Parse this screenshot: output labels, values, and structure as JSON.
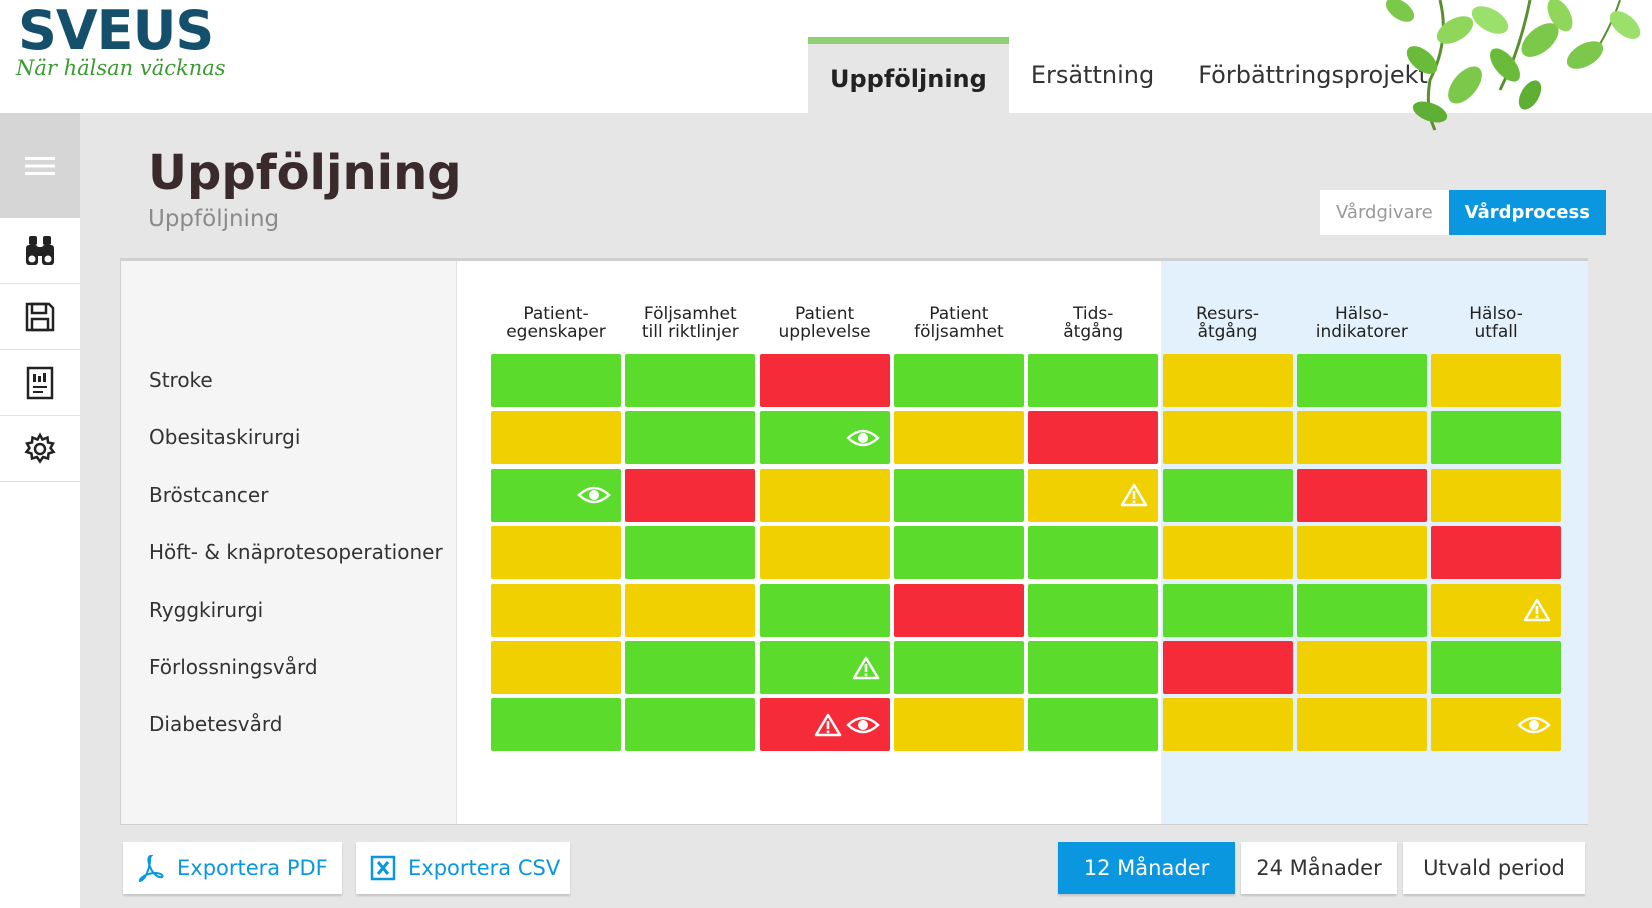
{
  "logo": {
    "title": "SVEUS",
    "tagline": "När hälsan väcknas"
  },
  "nav": {
    "tabs": [
      "Uppföljning",
      "Ersättning",
      "Förbättringsprojekt"
    ],
    "active": 0
  },
  "page": {
    "title": "Uppföljning",
    "subtitle": "Uppföljning"
  },
  "toggle": {
    "options": [
      "Vårdgivare",
      "Vårdprocess"
    ],
    "active": 1
  },
  "grid": {
    "columns": [
      "Patient-\negenskaper",
      "Följsamhet\ntill riktlinjer",
      "Patient\nupplevelse",
      "Patient\nföljsamhet",
      "Tids-\nåtgång",
      "Resurs-\nåtgång",
      "Hälso-\nindikatorer",
      "Hälso-\nutfall"
    ],
    "rows": [
      {
        "label": "Stroke",
        "cells": [
          [
            "green"
          ],
          [
            "green"
          ],
          [
            "red"
          ],
          [
            "green"
          ],
          [
            "green"
          ],
          [
            "yellow"
          ],
          [
            "green"
          ],
          [
            "yellow"
          ]
        ]
      },
      {
        "label": "Obesitaskirurgi",
        "cells": [
          [
            "yellow"
          ],
          [
            "green"
          ],
          [
            "green",
            "eye"
          ],
          [
            "yellow"
          ],
          [
            "red"
          ],
          [
            "yellow"
          ],
          [
            "yellow"
          ],
          [
            "green"
          ]
        ]
      },
      {
        "label": "Bröstcancer",
        "cells": [
          [
            "green",
            "eye"
          ],
          [
            "red"
          ],
          [
            "yellow"
          ],
          [
            "green"
          ],
          [
            "yellow",
            "warning"
          ],
          [
            "green"
          ],
          [
            "red"
          ],
          [
            "yellow"
          ]
        ]
      },
      {
        "label": "Höft- & knäprotesoperationer",
        "cells": [
          [
            "yellow"
          ],
          [
            "green"
          ],
          [
            "yellow"
          ],
          [
            "green"
          ],
          [
            "green"
          ],
          [
            "yellow"
          ],
          [
            "yellow"
          ],
          [
            "red"
          ]
        ]
      },
      {
        "label": "Ryggkirurgi",
        "cells": [
          [
            "yellow"
          ],
          [
            "yellow"
          ],
          [
            "green"
          ],
          [
            "red"
          ],
          [
            "green"
          ],
          [
            "green"
          ],
          [
            "green"
          ],
          [
            "yellow",
            "warning"
          ]
        ]
      },
      {
        "label": "Förlossningsvård",
        "cells": [
          [
            "yellow"
          ],
          [
            "green"
          ],
          [
            "green",
            "warning"
          ],
          [
            "green"
          ],
          [
            "green"
          ],
          [
            "red"
          ],
          [
            "yellow"
          ],
          [
            "green"
          ]
        ]
      },
      {
        "label": "Diabetesvård",
        "cells": [
          [
            "green"
          ],
          [
            "green"
          ],
          [
            "red",
            "warning",
            "eye"
          ],
          [
            "yellow"
          ],
          [
            "green"
          ],
          [
            "yellow"
          ],
          [
            "yellow"
          ],
          [
            "yellow",
            "eye"
          ]
        ]
      }
    ]
  },
  "export": {
    "pdf": "Exportera PDF",
    "csv": "Exportera CSV"
  },
  "periods": {
    "options": [
      "12 Månader",
      "24 Månader",
      "Utvald period"
    ],
    "active": 0
  },
  "colors": {
    "green": "#5bdb2c",
    "yellow": "#f0d000",
    "red": "#f62b3a",
    "accent": "#0a97e0"
  }
}
